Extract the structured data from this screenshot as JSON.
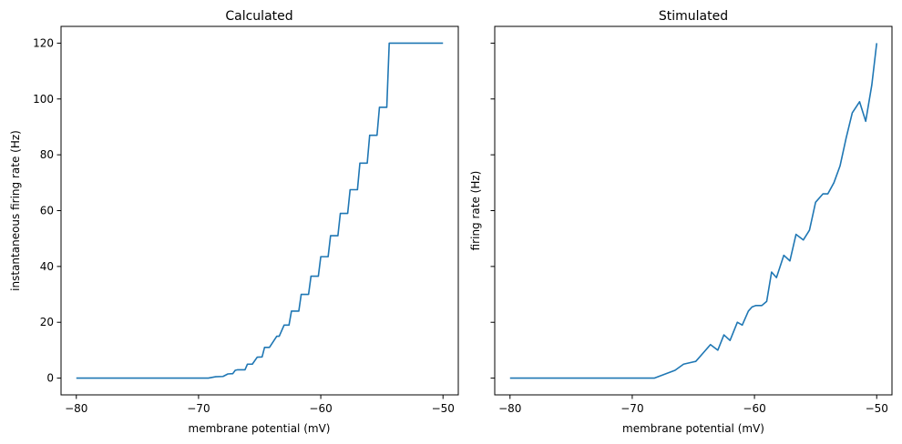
{
  "chart_data": [
    {
      "type": "line",
      "title": "Calculated",
      "xlabel": "membrane potential (mV)",
      "ylabel": "instantaneous firing rate (Hz)",
      "xlim": [
        -81.25,
        -48.75
      ],
      "ylim": [
        -6,
        126
      ],
      "xticks": [
        -80,
        -70,
        -60,
        -50
      ],
      "xtick_labels": [
        "−80",
        "−70",
        "−60",
        "−50"
      ],
      "yticks": [
        0,
        20,
        40,
        60,
        80,
        100,
        120
      ],
      "ytick_labels": [
        "0",
        "20",
        "40",
        "60",
        "80",
        "100",
        "120"
      ],
      "grid": false,
      "color": "#1f77b4",
      "x": [
        -80,
        -69.2,
        -68.6,
        -68.0,
        -67.6,
        -67.2,
        -67.0,
        -66.8,
        -66.2,
        -66.0,
        -65.6,
        -65.2,
        -64.8,
        -64.6,
        -64.2,
        -63.6,
        -63.4,
        -63.0,
        -62.6,
        -62.4,
        -61.8,
        -61.6,
        -61.0,
        -60.8,
        -60.2,
        -60.0,
        -59.4,
        -59.2,
        -58.6,
        -58.4,
        -57.8,
        -57.6,
        -57.0,
        -56.8,
        -56.2,
        -56.0,
        -55.4,
        -55.2,
        -54.6,
        -54.4,
        -53.8,
        -53.6,
        -53.0,
        -52.8,
        -52.2,
        -52.0,
        -51.4,
        -51.2,
        -50.6,
        -50.0
      ],
      "y": [
        0,
        0,
        0.5,
        0.6,
        1.5,
        1.6,
        2.8,
        3.0,
        3.0,
        5.0,
        5.0,
        7.5,
        7.6,
        11.0,
        11.0,
        15.0,
        15.0,
        19.0,
        19.0,
        24.0,
        24.0,
        30.0,
        30.0,
        36.5,
        36.5,
        43.5,
        43.5,
        51.0,
        51.0,
        59.0,
        59.0,
        67.5,
        67.5,
        77.0,
        77.0,
        87.0,
        87.0,
        97.0,
        97.0,
        120.0,
        120.0,
        120.0,
        120.0,
        120.0,
        120.0,
        120.0,
        120.0,
        120.0,
        120.0,
        120.0
      ]
    },
    {
      "type": "line",
      "title": "Stimulated",
      "xlabel": "membrane potential (mV)",
      "ylabel": "firing rate (Hz)",
      "xlim": [
        -81.25,
        -48.75
      ],
      "ylim": [
        -6,
        126
      ],
      "xticks": [
        -80,
        -70,
        -60,
        -50
      ],
      "xtick_labels": [
        "−80",
        "−70",
        "−60",
        "−50"
      ],
      "yticks": [
        0,
        20,
        40,
        60,
        80,
        100,
        120
      ],
      "grid": false,
      "color": "#1f77b4",
      "x": [
        -80,
        -68.2,
        -66.5,
        -65.8,
        -64.8,
        -64.2,
        -63.6,
        -63.0,
        -62.5,
        -62.0,
        -61.4,
        -61.0,
        -60.5,
        -60.2,
        -59.9,
        -59.4,
        -59.0,
        -58.6,
        -58.2,
        -57.6,
        -57.1,
        -56.6,
        -56.0,
        -55.5,
        -55.0,
        -54.4,
        -54.0,
        -53.5,
        -53.0,
        -52.5,
        -52.0,
        -51.4,
        -50.9,
        -50.4,
        -50.0
      ],
      "y": [
        0,
        0,
        2.8,
        5.0,
        6.0,
        9.0,
        12.0,
        10.0,
        15.5,
        13.5,
        20.0,
        19.0,
        24.0,
        25.5,
        26.0,
        26.0,
        27.5,
        38.0,
        36.0,
        44.0,
        42.0,
        51.5,
        49.5,
        53.0,
        63.0,
        66.0,
        66.0,
        70.0,
        76.0,
        86.0,
        95.0,
        99.0,
        92.0,
        105.0,
        120.0
      ]
    }
  ]
}
